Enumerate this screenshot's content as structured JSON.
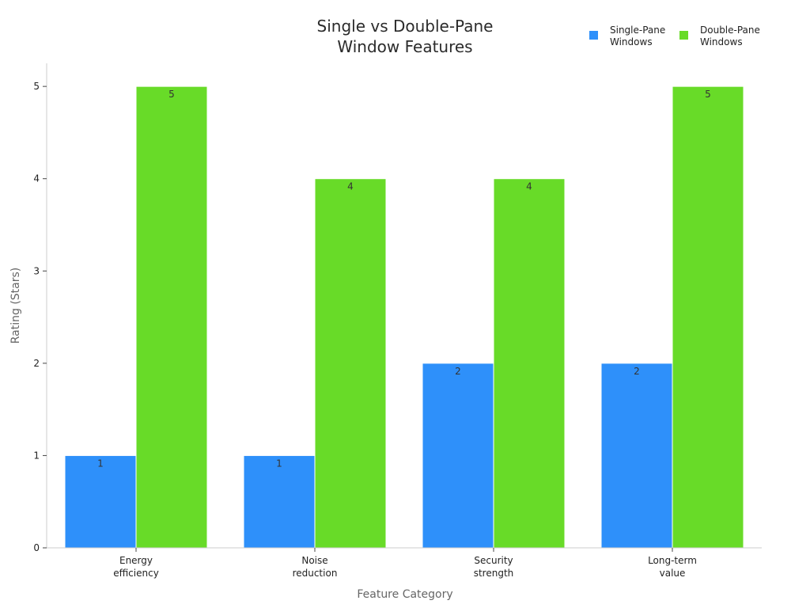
{
  "chart_data": {
    "type": "bar",
    "title": [
      "Single vs Double-Pane",
      "Window Features"
    ],
    "xlabel": "Feature Category",
    "ylabel": "Rating (Stars)",
    "categories": [
      [
        "Energy",
        "efficiency"
      ],
      [
        "Noise",
        "reduction"
      ],
      [
        "Security",
        "strength"
      ],
      [
        "Long-term",
        "value"
      ]
    ],
    "series": [
      {
        "name": [
          "Single-Pane",
          "Windows"
        ],
        "color": "#2e90fa",
        "values": [
          1,
          1,
          2,
          2
        ]
      },
      {
        "name": [
          "Double-Pane",
          "Windows"
        ],
        "color": "#68db28",
        "values": [
          5,
          4,
          4,
          5
        ]
      }
    ],
    "ylim": [
      0,
      5.25
    ],
    "yticks": [
      0,
      1,
      2,
      3,
      4,
      5
    ],
    "grid": false,
    "legend_position": "top-right",
    "data_labels": true
  }
}
